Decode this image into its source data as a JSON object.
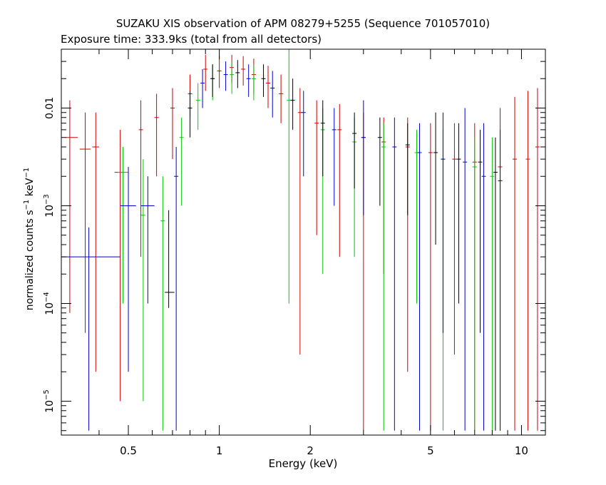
{
  "chart_data": {
    "type": "scatter",
    "title": "SUZAKU XIS observation of APM 08279+5255 (Sequence 701057010)",
    "subtitle": "Exposure time: 333.9ks (total from all detectors)",
    "xlabel": "Energy (keV)",
    "ylabel": "normalized counts s",
    "ylabel_sup1": "−1",
    "ylabel_mid": " keV",
    "ylabel_sup2": "−1",
    "x_scale": "log",
    "y_scale": "log",
    "xlim": [
      0.3,
      12
    ],
    "ylim": [
      4.5e-06,
      0.04
    ],
    "grid": false,
    "x_ticks": [
      {
        "value": 0.5,
        "label": "0.5"
      },
      {
        "value": 1,
        "label": "1"
      },
      {
        "value": 2,
        "label": "2"
      },
      {
        "value": 5,
        "label": "5"
      },
      {
        "value": 10,
        "label": "10"
      }
    ],
    "y_ticks": [
      {
        "value": 0.01,
        "label": "0.01",
        "base": "",
        "exp": ""
      },
      {
        "value": 0.001,
        "label": "",
        "base": "10",
        "exp": "−3"
      },
      {
        "value": 0.0001,
        "label": "",
        "base": "10",
        "exp": "−4"
      },
      {
        "value": 1e-05,
        "label": "",
        "base": "10",
        "exp": "−5"
      }
    ],
    "series_colors": [
      "#000000",
      "#d00000",
      "#00c800",
      "#0000d0"
    ],
    "series": [
      {
        "color": "#d00000",
        "points": [
          {
            "x": 0.32,
            "y": 0.005,
            "ylo": 8e-05,
            "yhi": 0.012,
            "xlo": 0.31,
            "xhi": 0.34
          },
          {
            "x": 0.36,
            "y": 0.0038,
            "ylo": 5e-05,
            "yhi": 0.009,
            "xlo": 0.345,
            "xhi": 0.375
          },
          {
            "x": 0.39,
            "y": 0.004,
            "ylo": 2e-05,
            "yhi": 0.009,
            "xlo": 0.38,
            "xhi": 0.4
          },
          {
            "x": 0.47,
            "y": 0.0022,
            "ylo": 1e-05,
            "yhi": 0.006,
            "xlo": 0.45,
            "xhi": 0.49
          },
          {
            "x": 0.55,
            "y": 0.006,
            "ylo": 0.0003,
            "yhi": 0.012
          },
          {
            "x": 0.62,
            "y": 0.008,
            "ylo": 0.002,
            "yhi": 0.014
          },
          {
            "x": 0.7,
            "y": 0.01,
            "ylo": 0.003,
            "yhi": 0.016
          },
          {
            "x": 0.8,
            "y": 0.014,
            "ylo": 0.008,
            "yhi": 0.022
          },
          {
            "x": 0.9,
            "y": 0.025,
            "ylo": 0.015,
            "yhi": 0.035
          },
          {
            "x": 1.0,
            "y": 0.024,
            "ylo": 0.016,
            "yhi": 0.034
          },
          {
            "x": 1.1,
            "y": 0.026,
            "ylo": 0.018,
            "yhi": 0.035
          },
          {
            "x": 1.2,
            "y": 0.025,
            "ylo": 0.017,
            "yhi": 0.034
          },
          {
            "x": 1.3,
            "y": 0.022,
            "ylo": 0.014,
            "yhi": 0.032
          },
          {
            "x": 1.45,
            "y": 0.018,
            "ylo": 0.01,
            "yhi": 0.027
          },
          {
            "x": 1.6,
            "y": 0.014,
            "ylo": 0.007,
            "yhi": 0.022
          },
          {
            "x": 1.85,
            "y": 0.009,
            "ylo": 3e-05,
            "yhi": 0.016
          },
          {
            "x": 2.1,
            "y": 0.007,
            "ylo": 0.0005,
            "yhi": 0.012
          },
          {
            "x": 2.5,
            "y": 0.006,
            "ylo": 0.0003,
            "yhi": 0.011
          },
          {
            "x": 3.0,
            "y": 0.005,
            "ylo": 5e-06,
            "yhi": 0.009
          },
          {
            "x": 3.5,
            "y": 0.0045,
            "ylo": 0.0002,
            "yhi": 0.008
          },
          {
            "x": 4.2,
            "y": 0.004,
            "ylo": 2e-05,
            "yhi": 0.008
          },
          {
            "x": 5.0,
            "y": 0.0035,
            "ylo": 5e-06,
            "yhi": 0.007
          },
          {
            "x": 6.0,
            "y": 0.003,
            "ylo": 3e-05,
            "yhi": 0.007
          },
          {
            "x": 7.0,
            "y": 0.0028,
            "ylo": 5e-06,
            "yhi": 0.007
          },
          {
            "x": 8.5,
            "y": 0.0025,
            "ylo": 5e-06,
            "yhi": 0.01
          },
          {
            "x": 9.5,
            "y": 0.003,
            "ylo": 5e-06,
            "yhi": 0.013
          },
          {
            "x": 10.5,
            "y": 0.003,
            "ylo": 5e-06,
            "yhi": 0.015
          },
          {
            "x": 11.3,
            "y": 0.004,
            "ylo": 5e-06,
            "yhi": 0.016
          }
        ]
      },
      {
        "color": "#00c800",
        "points": [
          {
            "x": 0.48,
            "y": 0.0022,
            "ylo": 0.0001,
            "yhi": 0.004,
            "xlo": 0.46,
            "xhi": 0.5
          },
          {
            "x": 0.56,
            "y": 0.0008,
            "ylo": 1e-05,
            "yhi": 0.003
          },
          {
            "x": 0.65,
            "y": 0.0007,
            "ylo": 5e-06,
            "yhi": 0.002
          },
          {
            "x": 0.75,
            "y": 0.005,
            "ylo": 0.001,
            "yhi": 0.008
          },
          {
            "x": 0.85,
            "y": 0.012,
            "ylo": 0.006,
            "yhi": 0.018
          },
          {
            "x": 0.95,
            "y": 0.02,
            "ylo": 0.012,
            "yhi": 0.028
          },
          {
            "x": 1.1,
            "y": 0.022,
            "ylo": 0.014,
            "yhi": 0.03
          },
          {
            "x": 1.3,
            "y": 0.02,
            "ylo": 0.012,
            "yhi": 0.028
          },
          {
            "x": 1.7,
            "y": 0.012,
            "ylo": 0.0001,
            "yhi": 0.04
          },
          {
            "x": 2.2,
            "y": 0.006,
            "ylo": 0.0002,
            "yhi": 0.01
          },
          {
            "x": 2.8,
            "y": 0.0045,
            "ylo": 0.0003,
            "yhi": 0.008
          },
          {
            "x": 3.5,
            "y": 0.004,
            "ylo": 5e-06,
            "yhi": 0.007
          },
          {
            "x": 4.5,
            "y": 0.0035,
            "ylo": 0.0001,
            "yhi": 0.006
          },
          {
            "x": 5.5,
            "y": 0.003,
            "ylo": 5e-06,
            "yhi": 0.006
          },
          {
            "x": 7.0,
            "y": 0.0025,
            "ylo": 5e-06,
            "yhi": 0.005
          },
          {
            "x": 8.0,
            "y": 0.002,
            "ylo": 5e-06,
            "yhi": 0.005
          }
        ]
      },
      {
        "color": "#0000d0",
        "points": [
          {
            "x": 0.37,
            "y": 0.0003,
            "ylo": 5e-06,
            "yhi": 0.0006,
            "xlo": 0.3,
            "xhi": 0.47
          },
          {
            "x": 0.5,
            "y": 0.001,
            "ylo": 2e-05,
            "yhi": 0.0025,
            "xlo": 0.47,
            "xhi": 0.53
          },
          {
            "x": 0.58,
            "y": 0.001,
            "ylo": 0.0001,
            "yhi": 0.002,
            "xlo": 0.55,
            "xhi": 0.61
          },
          {
            "x": 0.72,
            "y": 0.002,
            "ylo": 5e-06,
            "yhi": 0.004
          },
          {
            "x": 0.88,
            "y": 0.018,
            "ylo": 0.01,
            "yhi": 0.025
          },
          {
            "x": 1.05,
            "y": 0.022,
            "ylo": 0.015,
            "yhi": 0.03
          },
          {
            "x": 1.25,
            "y": 0.02,
            "ylo": 0.013,
            "yhi": 0.028
          },
          {
            "x": 1.5,
            "y": 0.016,
            "ylo": 0.008,
            "yhi": 0.024
          },
          {
            "x": 1.9,
            "y": 0.009,
            "ylo": 0.002,
            "yhi": 0.015
          },
          {
            "x": 2.4,
            "y": 0.006,
            "ylo": 0.001,
            "yhi": 0.01
          },
          {
            "x": 3.0,
            "y": 0.005,
            "ylo": 0.0008,
            "yhi": 0.012
          },
          {
            "x": 3.8,
            "y": 0.004,
            "ylo": 5e-06,
            "yhi": 0.008
          },
          {
            "x": 4.6,
            "y": 0.0035,
            "ylo": 5e-06,
            "yhi": 0.007
          },
          {
            "x": 5.5,
            "y": 0.003,
            "ylo": 5e-05,
            "yhi": 0.009
          },
          {
            "x": 6.5,
            "y": 0.0028,
            "ylo": 5e-06,
            "yhi": 0.01
          },
          {
            "x": 7.5,
            "y": 0.002,
            "ylo": 5e-06,
            "yhi": 0.007
          },
          {
            "x": 8.5,
            "y": 0.0018,
            "ylo": 5e-06,
            "yhi": 0.006
          }
        ]
      },
      {
        "color": "#000000",
        "points": [
          {
            "x": 0.68,
            "y": 0.00013,
            "ylo": 9e-05,
            "yhi": 0.0009,
            "xlo": 0.66,
            "xhi": 0.71
          },
          {
            "x": 0.8,
            "y": 0.01,
            "ylo": 0.005,
            "yhi": 0.015
          },
          {
            "x": 0.95,
            "y": 0.02,
            "ylo": 0.013,
            "yhi": 0.028
          },
          {
            "x": 1.15,
            "y": 0.023,
            "ylo": 0.016,
            "yhi": 0.031
          },
          {
            "x": 1.4,
            "y": 0.02,
            "ylo": 0.013,
            "yhi": 0.028
          },
          {
            "x": 1.75,
            "y": 0.012,
            "ylo": 0.006,
            "yhi": 0.02
          },
          {
            "x": 2.2,
            "y": 0.007,
            "ylo": 0.002,
            "yhi": 0.012
          },
          {
            "x": 2.8,
            "y": 0.0055,
            "ylo": 0.0015,
            "yhi": 0.009
          },
          {
            "x": 3.4,
            "y": 0.005,
            "ylo": 0.001,
            "yhi": 0.008
          },
          {
            "x": 4.2,
            "y": 0.0042,
            "ylo": 0.0008,
            "yhi": 0.007
          },
          {
            "x": 5.2,
            "y": 0.0035,
            "ylo": 0.0004,
            "yhi": 0.009
          },
          {
            "x": 6.2,
            "y": 0.003,
            "ylo": 0.0001,
            "yhi": 0.007
          },
          {
            "x": 7.3,
            "y": 0.0028,
            "ylo": 5e-05,
            "yhi": 0.006
          },
          {
            "x": 8.2,
            "y": 0.0022,
            "ylo": 5e-06,
            "yhi": 0.005
          }
        ]
      }
    ]
  }
}
